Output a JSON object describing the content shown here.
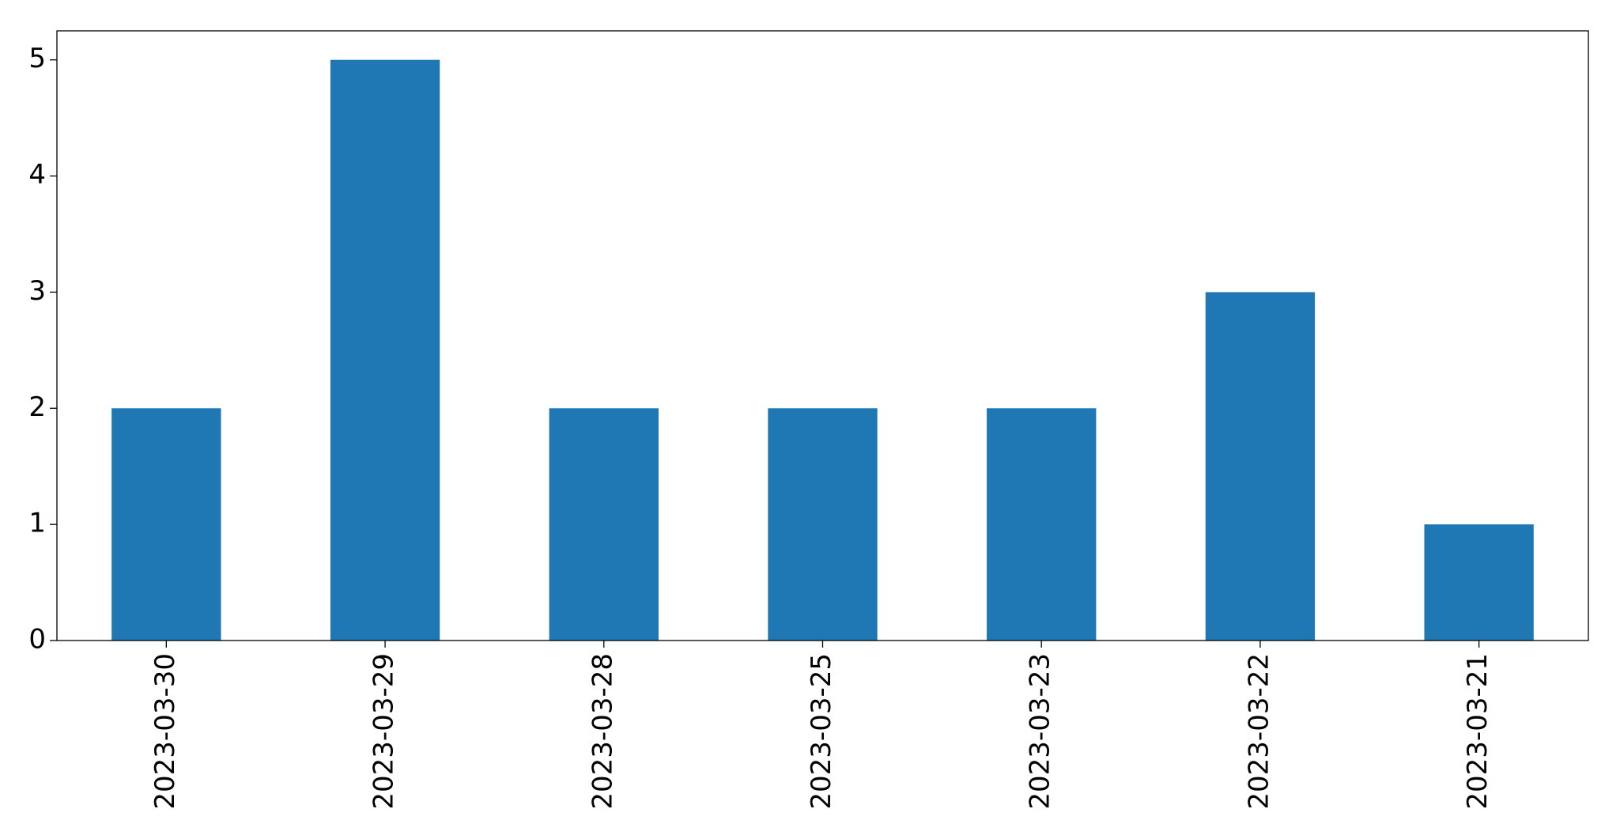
{
  "chart_data": {
    "type": "bar",
    "categories": [
      "2023-03-30",
      "2023-03-29",
      "2023-03-28",
      "2023-03-25",
      "2023-03-23",
      "2023-03-22",
      "2023-03-21"
    ],
    "values": [
      2,
      5,
      2,
      2,
      2,
      3,
      1
    ],
    "color": "#1f77b4",
    "ylim": [
      0,
      5.25
    ],
    "yticks": [
      0,
      1,
      2,
      3,
      4,
      5
    ],
    "grid": false
  }
}
